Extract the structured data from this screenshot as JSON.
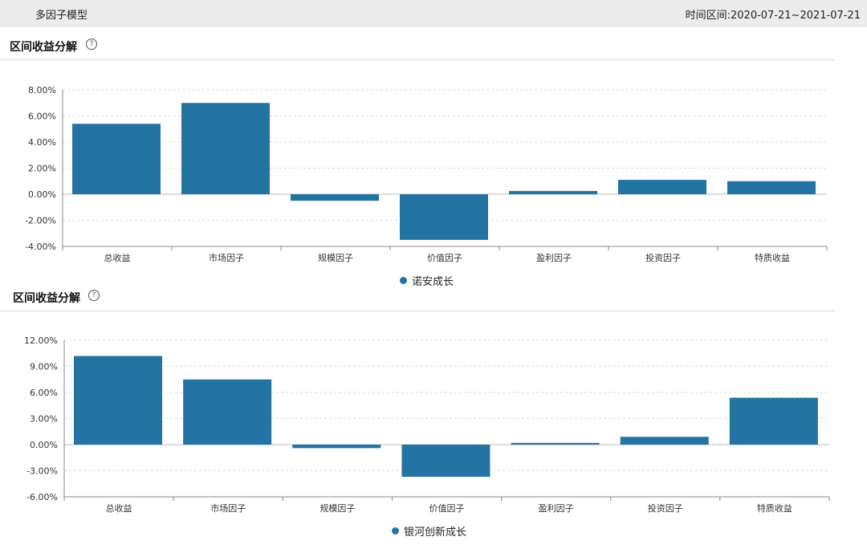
{
  "header": {
    "app_title": "多因子模型",
    "range_label": "时间区间:2020-07-21~2021-07-21"
  },
  "colors": {
    "bar": "#2474a3",
    "grid": "#d9d9d9",
    "axis": "#888888"
  },
  "panels": [
    {
      "title": "区间收益分解",
      "help_icon": "question-circle-icon"
    },
    {
      "title": "区间收益分解",
      "help_icon": "question-circle-icon"
    }
  ],
  "chart_data": [
    {
      "type": "bar",
      "categories": [
        "总收益",
        "市场因子",
        "规模因子",
        "价值因子",
        "盈利因子",
        "投资因子",
        "特质收益"
      ],
      "series": [
        {
          "name": "诺安成长",
          "values": [
            5.4,
            7.0,
            -0.5,
            -3.5,
            0.25,
            1.1,
            1.0
          ]
        }
      ],
      "ylim": [
        -4,
        8
      ],
      "yticks": [
        -4,
        -2,
        0,
        2,
        4,
        6,
        8
      ],
      "ytick_labels": [
        "-4.00%",
        "-2.00%",
        "0.00%",
        "2.00%",
        "4.00%",
        "6.00%",
        "8.00%"
      ],
      "grid": true,
      "legend": "bottom-center"
    },
    {
      "type": "bar",
      "categories": [
        "总收益",
        "市场因子",
        "规模因子",
        "价值因子",
        "盈利因子",
        "投资因子",
        "特质收益"
      ],
      "series": [
        {
          "name": "银河创新成长",
          "values": [
            10.2,
            7.5,
            -0.4,
            -3.7,
            0.2,
            0.9,
            5.4
          ]
        }
      ],
      "ylim": [
        -6,
        12
      ],
      "yticks": [
        -6,
        -3,
        0,
        3,
        6,
        9,
        12
      ],
      "ytick_labels": [
        "-6.00%",
        "-3.00%",
        "0.00%",
        "3.00%",
        "6.00%",
        "9.00%",
        "12.00%"
      ],
      "grid": true,
      "legend": "bottom-center"
    }
  ]
}
